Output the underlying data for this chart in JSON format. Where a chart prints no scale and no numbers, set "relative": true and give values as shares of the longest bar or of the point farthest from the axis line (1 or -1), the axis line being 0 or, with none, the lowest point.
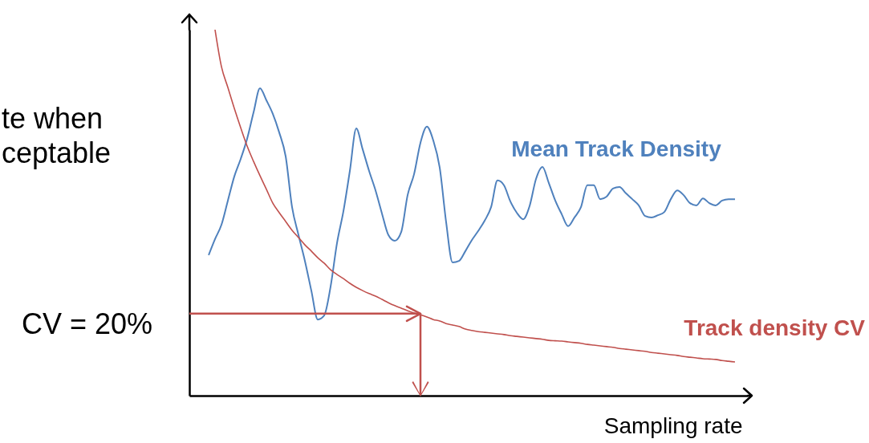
{
  "chart_data": {
    "type": "line",
    "relative": true,
    "xlabel": "Sampling rate",
    "categories": [
      null,
      null,
      null,
      null,
      null,
      null,
      null,
      null,
      null,
      null,
      null,
      null,
      null,
      null,
      null,
      null,
      null,
      null,
      null,
      null,
      null,
      null,
      null,
      null,
      null,
      null,
      null,
      null,
      null,
      null,
      null,
      null,
      null,
      null,
      null,
      null,
      null,
      null,
      null,
      null,
      null,
      null,
      null,
      null,
      null,
      null,
      null,
      null,
      null,
      null,
      null,
      null,
      null,
      null,
      null,
      null,
      null,
      null,
      null,
      null,
      null,
      null,
      null,
      null,
      null,
      null,
      null,
      null,
      null,
      null,
      null,
      null,
      null,
      null,
      null,
      null,
      null,
      null,
      null,
      null,
      null,
      null,
      null,
      null,
      null,
      null,
      null,
      null
    ],
    "series": [
      {
        "name": "Mean Track Density",
        "color": "#4f81bd",
        "values": [
          null,
          null,
          null,
          0.384,
          0.428,
          0.467,
          0.533,
          0.599,
          0.647,
          0.702,
          0.774,
          0.84,
          0.807,
          0.77,
          0.719,
          0.654,
          0.515,
          0.439,
          0.368,
          0.287,
          0.208,
          0.219,
          0.298,
          0.417,
          0.504,
          0.614,
          0.73,
          0.673,
          0.614,
          0.561,
          0.498,
          0.439,
          0.423,
          0.447,
          0.548,
          0.605,
          0.691,
          0.735,
          0.697,
          0.623,
          0.474,
          0.364,
          0.368,
          0.395,
          0.425,
          0.45,
          0.478,
          0.515,
          0.588,
          0.575,
          0.531,
          0.5,
          0.482,
          0.518,
          0.592,
          0.625,
          0.581,
          0.533,
          0.496,
          0.463,
          0.487,
          0.515,
          0.575,
          0.575,
          0.537,
          0.544,
          0.566,
          0.57,
          0.553,
          0.537,
          0.52,
          0.491,
          0.487,
          0.493,
          0.502,
          0.537,
          0.561,
          0.548,
          0.526,
          0.52,
          0.539,
          0.526,
          0.52,
          0.533,
          0.537,
          0.537,
          null,
          null
        ]
      },
      {
        "name": "Track density CV",
        "color": "#c0504d",
        "values": [
          null,
          null,
          null,
          null,
          1,
          0.899,
          0.842,
          0.785,
          0.732,
          0.682,
          0.64,
          0.601,
          0.564,
          0.526,
          0.5,
          0.476,
          0.452,
          0.432,
          0.412,
          0.395,
          0.377,
          0.362,
          0.344,
          0.331,
          0.32,
          0.307,
          0.296,
          0.287,
          0.279,
          0.272,
          0.263,
          0.254,
          0.246,
          0.239,
          0.232,
          0.226,
          0.221,
          0.215,
          0.208,
          0.204,
          0.197,
          0.193,
          0.189,
          0.182,
          0.178,
          0.175,
          0.173,
          0.171,
          0.169,
          0.167,
          0.164,
          0.162,
          0.16,
          0.158,
          0.156,
          0.154,
          0.151,
          0.15,
          0.149,
          0.147,
          0.145,
          0.143,
          0.14,
          0.138,
          0.136,
          0.134,
          0.132,
          0.129,
          0.127,
          0.125,
          0.123,
          0.121,
          0.118,
          0.116,
          0.114,
          0.112,
          0.11,
          0.107,
          0.105,
          0.103,
          0.101,
          0.1,
          0.099,
          0.096,
          0.094,
          0.092,
          null,
          null
        ]
      }
    ],
    "ref_lines": [
      {
        "axis": "y",
        "value": 0.224,
        "color": "#c0504d"
      }
    ],
    "annotations": [
      "te when",
      "ceptable",
      "CV = 20%"
    ]
  }
}
